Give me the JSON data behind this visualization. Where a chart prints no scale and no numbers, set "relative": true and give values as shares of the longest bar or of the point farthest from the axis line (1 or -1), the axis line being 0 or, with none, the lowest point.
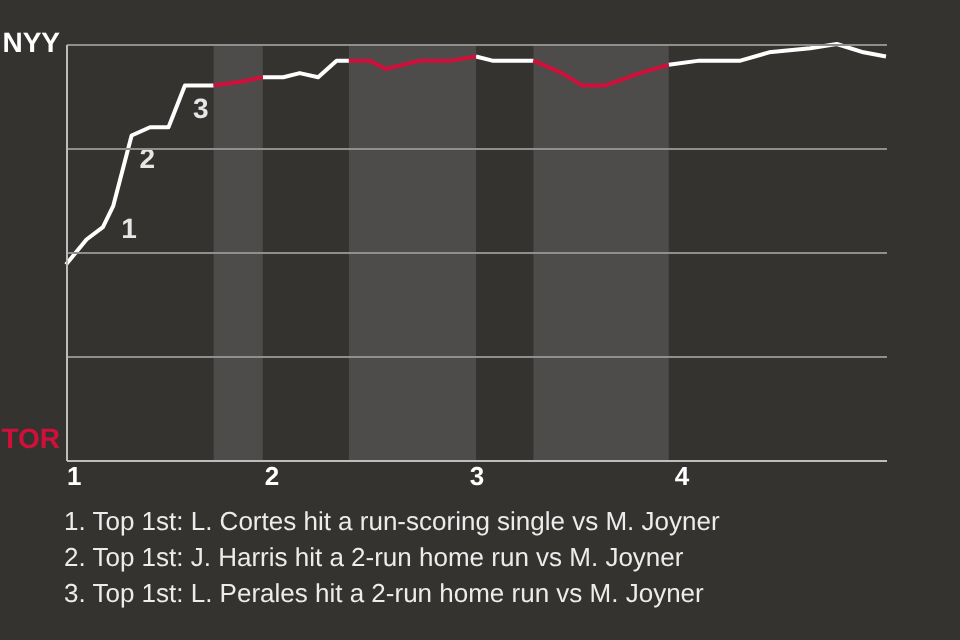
{
  "chart_data": {
    "type": "line",
    "relative": true,
    "x": [
      1,
      1.1,
      1.18,
      1.23,
      1.32,
      1.41,
      1.5,
      1.58,
      1.72,
      1.86,
      1.96,
      2.06,
      2.14,
      2.23,
      2.32,
      2.38,
      2.48,
      2.56,
      2.73,
      2.88,
      3,
      3.08,
      3.28,
      3.42,
      3.52,
      3.63,
      3.8,
      3.94,
      4.09,
      4.29,
      4.43,
      4.63,
      4.76,
      4.89,
      5
    ],
    "series": [
      {
        "color": "#ffffff",
        "values": [
          0.47,
          0.53,
          0.56,
          0.61,
          0.78,
          0.8,
          0.8,
          0.9,
          0.9,
          null,
          0.92,
          0.92,
          0.93,
          0.92,
          0.96,
          0.96,
          null,
          null,
          null,
          null,
          0.97,
          0.96,
          0.96,
          null,
          null,
          null,
          null,
          0.95,
          0.96,
          0.96,
          0.98,
          0.99,
          1,
          0.98,
          0.97
        ]
      },
      {
        "color": "#d0103a",
        "values": [
          null,
          null,
          null,
          null,
          null,
          null,
          null,
          null,
          0.9,
          0.91,
          0.92,
          null,
          null,
          null,
          null,
          0.96,
          0.96,
          0.94,
          0.96,
          0.96,
          0.97,
          null,
          0.96,
          0.93,
          0.9,
          0.9,
          0.93,
          0.95,
          null,
          null,
          null,
          null,
          null,
          null,
          null
        ]
      }
    ],
    "xlim": [
      1,
      5
    ],
    "xticks": [
      1,
      2,
      3,
      4
    ],
    "grid": "y",
    "bands": [
      {
        "axis": "x",
        "from": 1.72,
        "to": 1.96,
        "color": "#4e4c4a"
      },
      {
        "axis": "x",
        "from": 2.38,
        "to": 3,
        "color": "#4e4c4a"
      },
      {
        "axis": "x",
        "from": 3.28,
        "to": 3.94,
        "color": "#4e4c4a"
      }
    ],
    "annotations": [
      "NYY",
      "TOR",
      {
        "text": "1",
        "x": 1.23,
        "y": 0.61
      },
      {
        "text": "2",
        "x": 1.32,
        "y": 0.78
      },
      {
        "text": "3",
        "x": 1.58,
        "y": 0.9
      },
      "1. Top 1st: L. Cortes hit a run-scoring single vs M. Joyner",
      "2. Top 1st: J. Harris hit a 2-run home run vs M. Joyner",
      "3. Top 1st: L. Perales hit a 2-run home run vs M. Joyner"
    ]
  }
}
